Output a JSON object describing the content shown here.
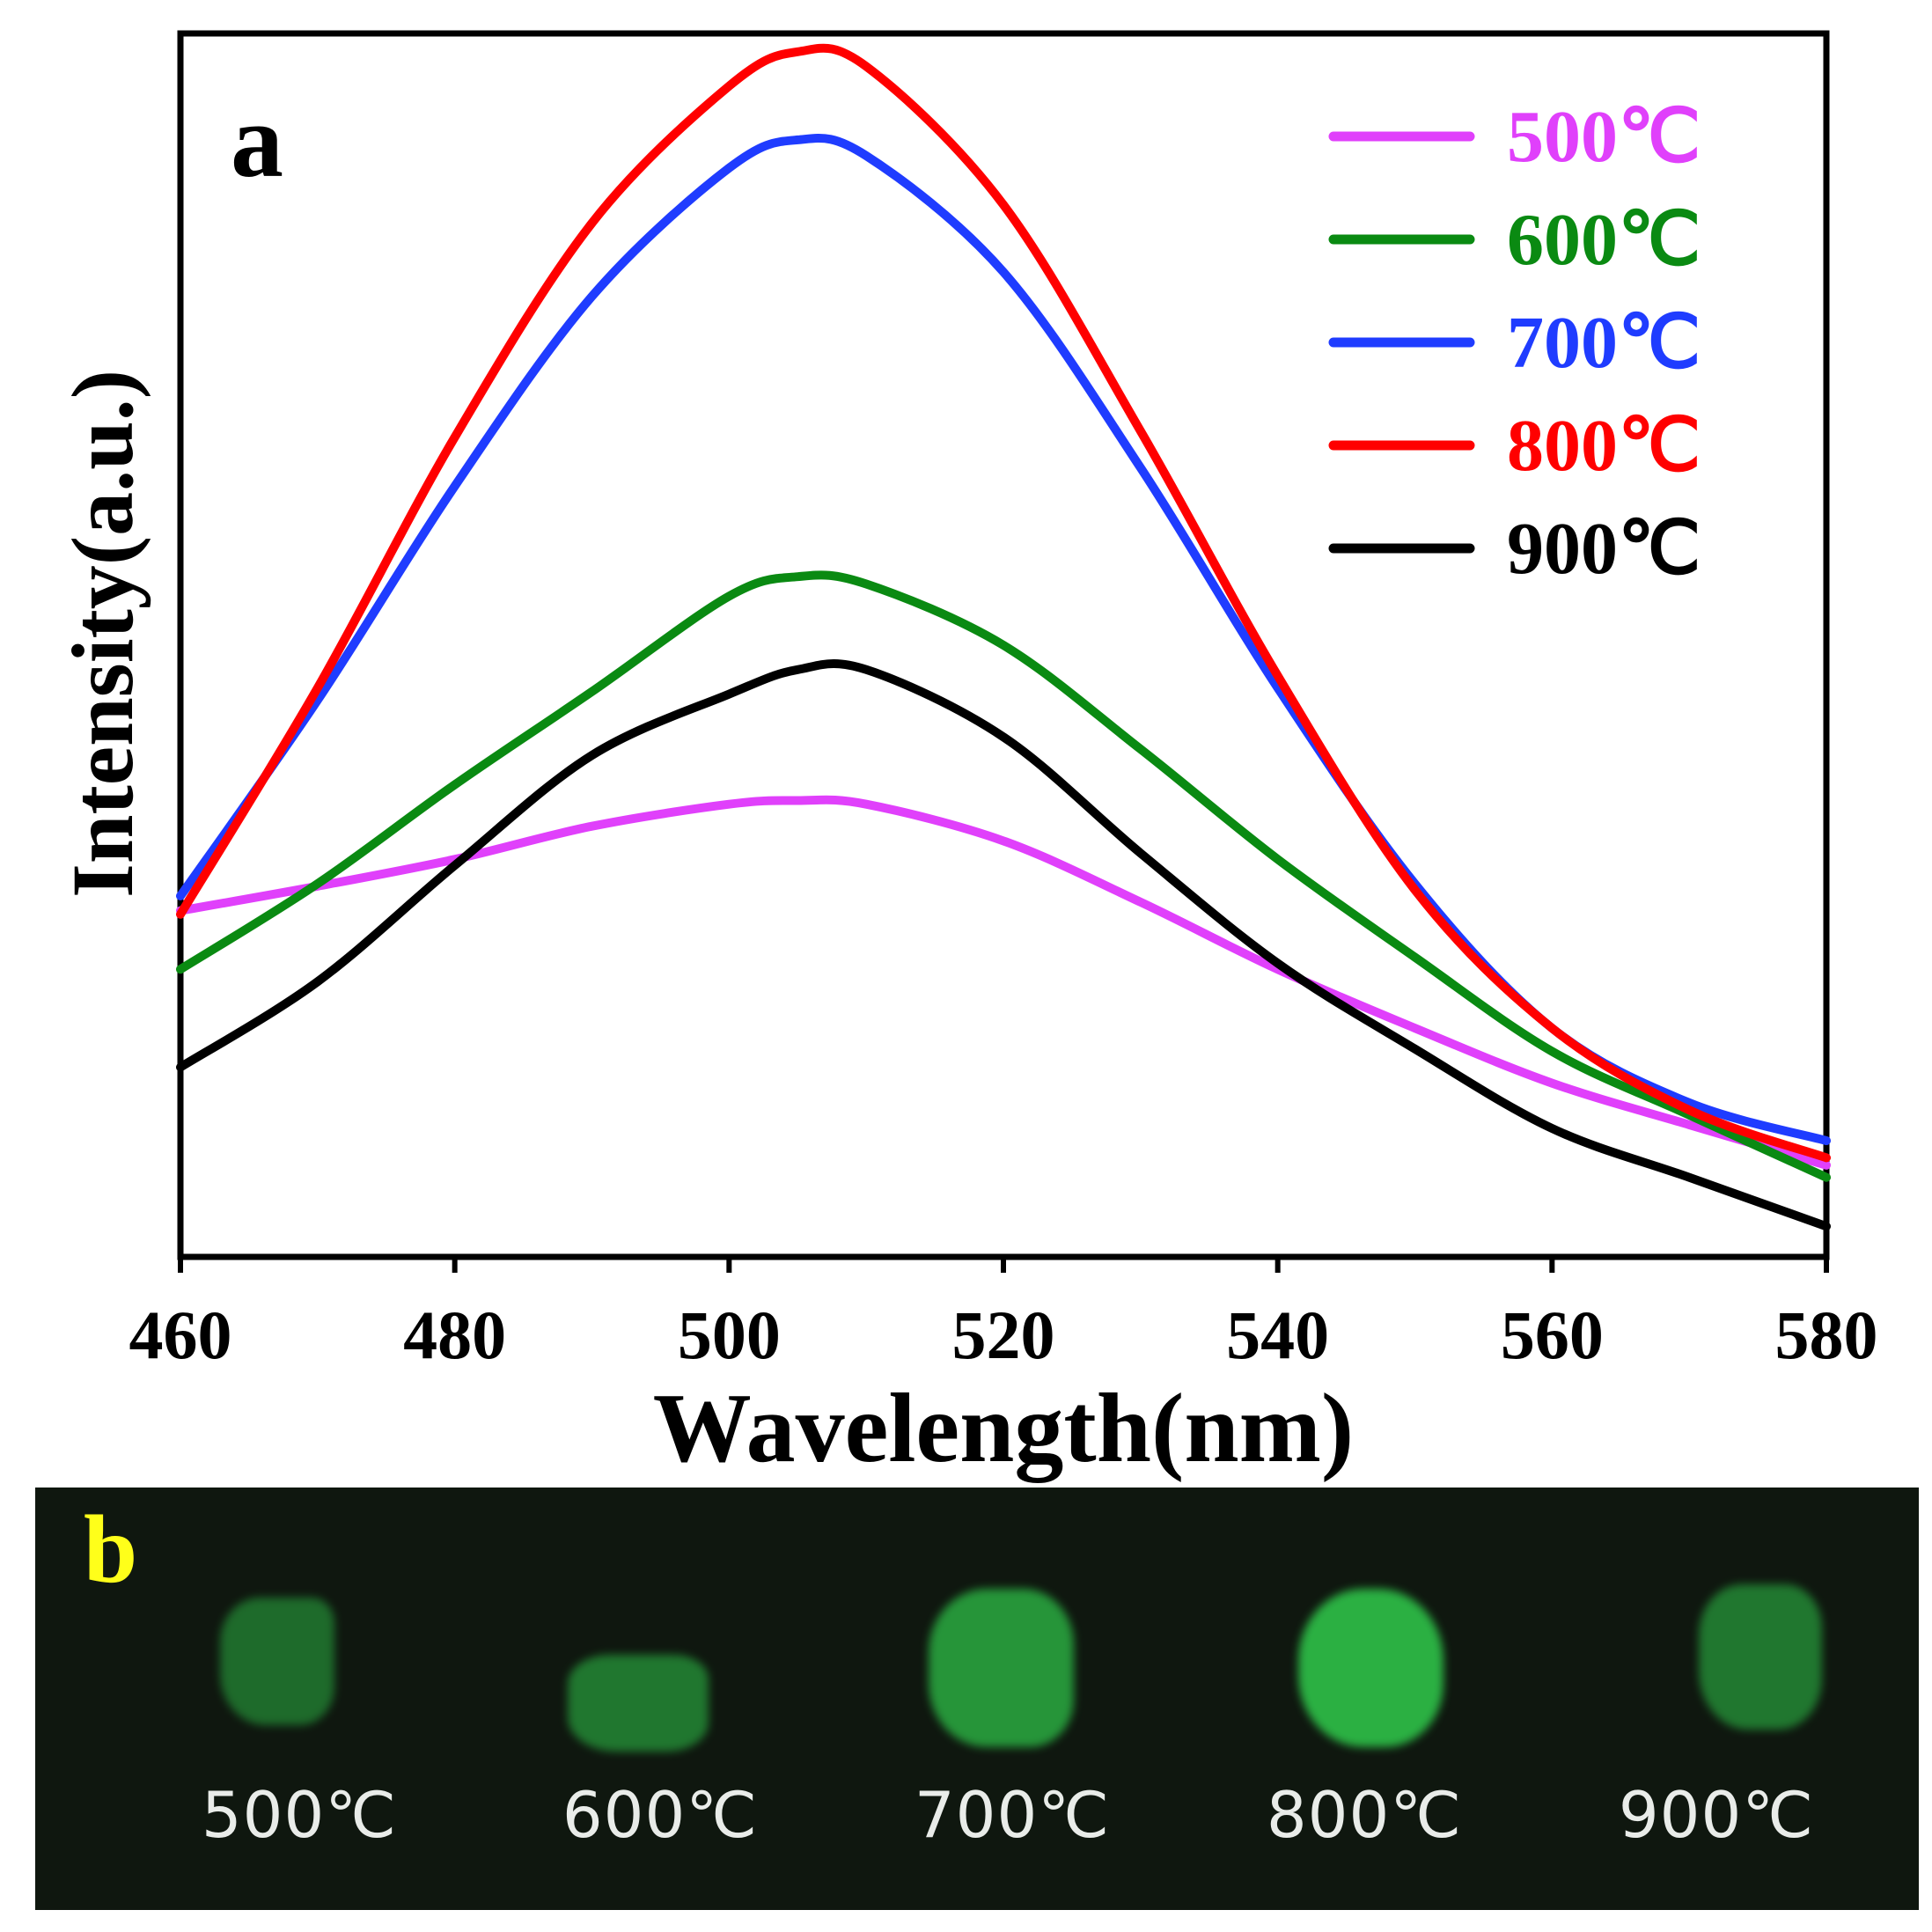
{
  "chart_data": {
    "type": "line",
    "panel_label": "a",
    "xlabel": "Wavelength(nm)",
    "ylabel": "Intensity(a.u.)",
    "xlim": [
      460,
      580
    ],
    "ylim": [
      0,
      100
    ],
    "xticks": [
      460,
      480,
      500,
      520,
      540,
      560,
      580
    ],
    "yticks_shown": false,
    "legend_position": "top-right",
    "x": [
      460,
      470,
      480,
      490,
      500,
      505,
      510,
      520,
      530,
      540,
      550,
      560,
      570,
      580
    ],
    "series": [
      {
        "name": "500℃",
        "color": "#e040fb",
        "values": [
          28.3,
          30.3,
          32.5,
          35.2,
          37.0,
          37.3,
          37.0,
          34.0,
          29.0,
          23.5,
          18.7,
          14.2,
          10.8,
          7.5
        ]
      },
      {
        "name": "600℃",
        "color": "#0a8a12",
        "values": [
          23.5,
          30.5,
          38.6,
          46.2,
          54.0,
          55.6,
          55.0,
          50.0,
          41.5,
          32.5,
          24.5,
          16.8,
          11.6,
          6.5
        ]
      },
      {
        "name": "700℃",
        "color": "#1f3cff",
        "values": [
          29.5,
          45.5,
          63.0,
          78.5,
          89.0,
          91.3,
          90.0,
          80.5,
          64.5,
          46.5,
          30.5,
          18.7,
          12.6,
          9.5
        ]
      },
      {
        "name": "800℃",
        "color": "#ff0000",
        "values": [
          28.0,
          46.5,
          67.0,
          84.5,
          95.7,
          98.5,
          97.3,
          86.0,
          67.5,
          47.5,
          30.0,
          18.7,
          12.0,
          8.1
        ]
      },
      {
        "name": "900℃",
        "color": "#000000",
        "values": [
          15.5,
          22.5,
          32.0,
          41.0,
          46.0,
          48.0,
          48.0,
          42.5,
          33.0,
          24.0,
          17.0,
          10.5,
          6.5,
          2.5
        ]
      }
    ]
  },
  "panel_b": {
    "label": "b",
    "samples": [
      {
        "label": "500℃"
      },
      {
        "label": "600℃"
      },
      {
        "label": "700℃"
      },
      {
        "label": "800℃"
      },
      {
        "label": "900℃"
      }
    ]
  }
}
